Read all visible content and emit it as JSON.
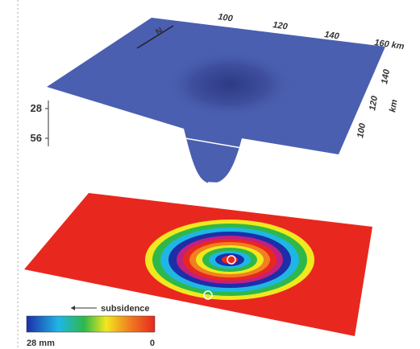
{
  "figure": {
    "north_label": "N",
    "top_axis": {
      "ticks": [
        "100",
        "120",
        "140",
        "160 km"
      ]
    },
    "right_axis": {
      "ticks": [
        "140",
        "120",
        "100"
      ],
      "unit": "km"
    },
    "depth_axis": {
      "ticks": [
        "28",
        "56"
      ]
    },
    "colorbar": {
      "label": "subsidence",
      "min_label": "28 mm",
      "max_label": "0"
    }
  }
}
